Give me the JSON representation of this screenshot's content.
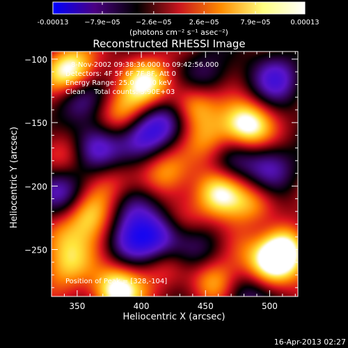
{
  "chart_data": {
    "type": "heatmap",
    "title": "Reconstructed RHESSI Image",
    "xlabel": "Heliocentric X (arcsec)",
    "ylabel": "Heliocentric Y (arcsec)",
    "xlim": [
      330,
      522
    ],
    "ylim": [
      -287,
      -94
    ],
    "x_ticks": [
      350,
      400,
      450,
      500
    ],
    "y_ticks": [
      -100,
      -150,
      -200,
      -250
    ],
    "colorbar": {
      "min": -0.00013,
      "max": 0.00013,
      "tick_values": [
        -0.00013,
        -7.9e-05,
        -2.6e-05,
        2.6e-05,
        7.9e-05,
        0.00013
      ],
      "tick_labels": [
        "-0.00013",
        "−7.9e−05",
        "−2.6e−05",
        "2.6e−05",
        "7.9e−05",
        "0.00013"
      ],
      "unit_label": "(photons cm⁻² s⁻¹ asec⁻²)",
      "colors": [
        "#0000ff",
        "#4b0082",
        "#000000",
        "#c8141e",
        "#ff8c00",
        "#ffff80",
        "#ffffff"
      ]
    },
    "annotations": {
      "time_range": "8-Nov-2002 09:38:36.000 to 09:42:56.000",
      "detectors": "Detectors: 4F 5F 6F 7F 8F, Att 0",
      "energy_range": "Energy Range: 25.0 - 50.0 keV",
      "clean_counts": "Clean    Total counts: 3.90E+03",
      "peak": "Position of Peak = [328,-104]"
    },
    "peak": {
      "x": 328,
      "y": -104
    },
    "blobs": [
      {
        "x": 345,
        "y": -110,
        "v": 1.0
      },
      {
        "x": 405,
        "y": -118,
        "v": 0.75
      },
      {
        "x": 440,
        "y": -135,
        "v": 0.7
      },
      {
        "x": 482,
        "y": -152,
        "v": 0.95
      },
      {
        "x": 455,
        "y": -165,
        "v": 0.55
      },
      {
        "x": 385,
        "y": -145,
        "v": 0.6
      },
      {
        "x": 338,
        "y": -175,
        "v": 0.5
      },
      {
        "x": 372,
        "y": -200,
        "v": 0.45
      },
      {
        "x": 360,
        "y": -220,
        "v": 0.65
      },
      {
        "x": 420,
        "y": -190,
        "v": 0.55
      },
      {
        "x": 460,
        "y": -205,
        "v": 0.7
      },
      {
        "x": 490,
        "y": -215,
        "v": 0.6
      },
      {
        "x": 512,
        "y": -250,
        "v": 0.9
      },
      {
        "x": 500,
        "y": -265,
        "v": 0.7
      },
      {
        "x": 335,
        "y": -240,
        "v": 0.5
      },
      {
        "x": 345,
        "y": -262,
        "v": 0.55
      },
      {
        "x": 380,
        "y": -282,
        "v": 0.95
      },
      {
        "x": 420,
        "y": -262,
        "v": 0.4
      },
      {
        "x": 455,
        "y": -275,
        "v": 0.55
      },
      {
        "x": 475,
        "y": -245,
        "v": 0.45
      },
      {
        "x": 430,
        "y": -225,
        "v": 0.35
      },
      {
        "x": 350,
        "y": -130,
        "v": -0.55
      },
      {
        "x": 400,
        "y": -160,
        "v": -0.5
      },
      {
        "x": 420,
        "y": -150,
        "v": -0.7
      },
      {
        "x": 365,
        "y": -170,
        "v": -0.9
      },
      {
        "x": 395,
        "y": -215,
        "v": -0.6
      },
      {
        "x": 415,
        "y": -240,
        "v": -0.75
      },
      {
        "x": 440,
        "y": -250,
        "v": -0.55
      },
      {
        "x": 470,
        "y": -180,
        "v": -0.5
      },
      {
        "x": 500,
        "y": -185,
        "v": -0.55
      },
      {
        "x": 505,
        "y": -115,
        "v": -0.6
      },
      {
        "x": 335,
        "y": -205,
        "v": -0.85
      },
      {
        "x": 450,
        "y": -115,
        "v": -0.45
      },
      {
        "x": 495,
        "y": -235,
        "v": -0.4
      },
      {
        "x": 390,
        "y": -245,
        "v": -0.5
      },
      {
        "x": 480,
        "y": -285,
        "v": -0.5
      }
    ]
  },
  "footer": {
    "timestamp": "16-Apr-2013 02:27"
  }
}
